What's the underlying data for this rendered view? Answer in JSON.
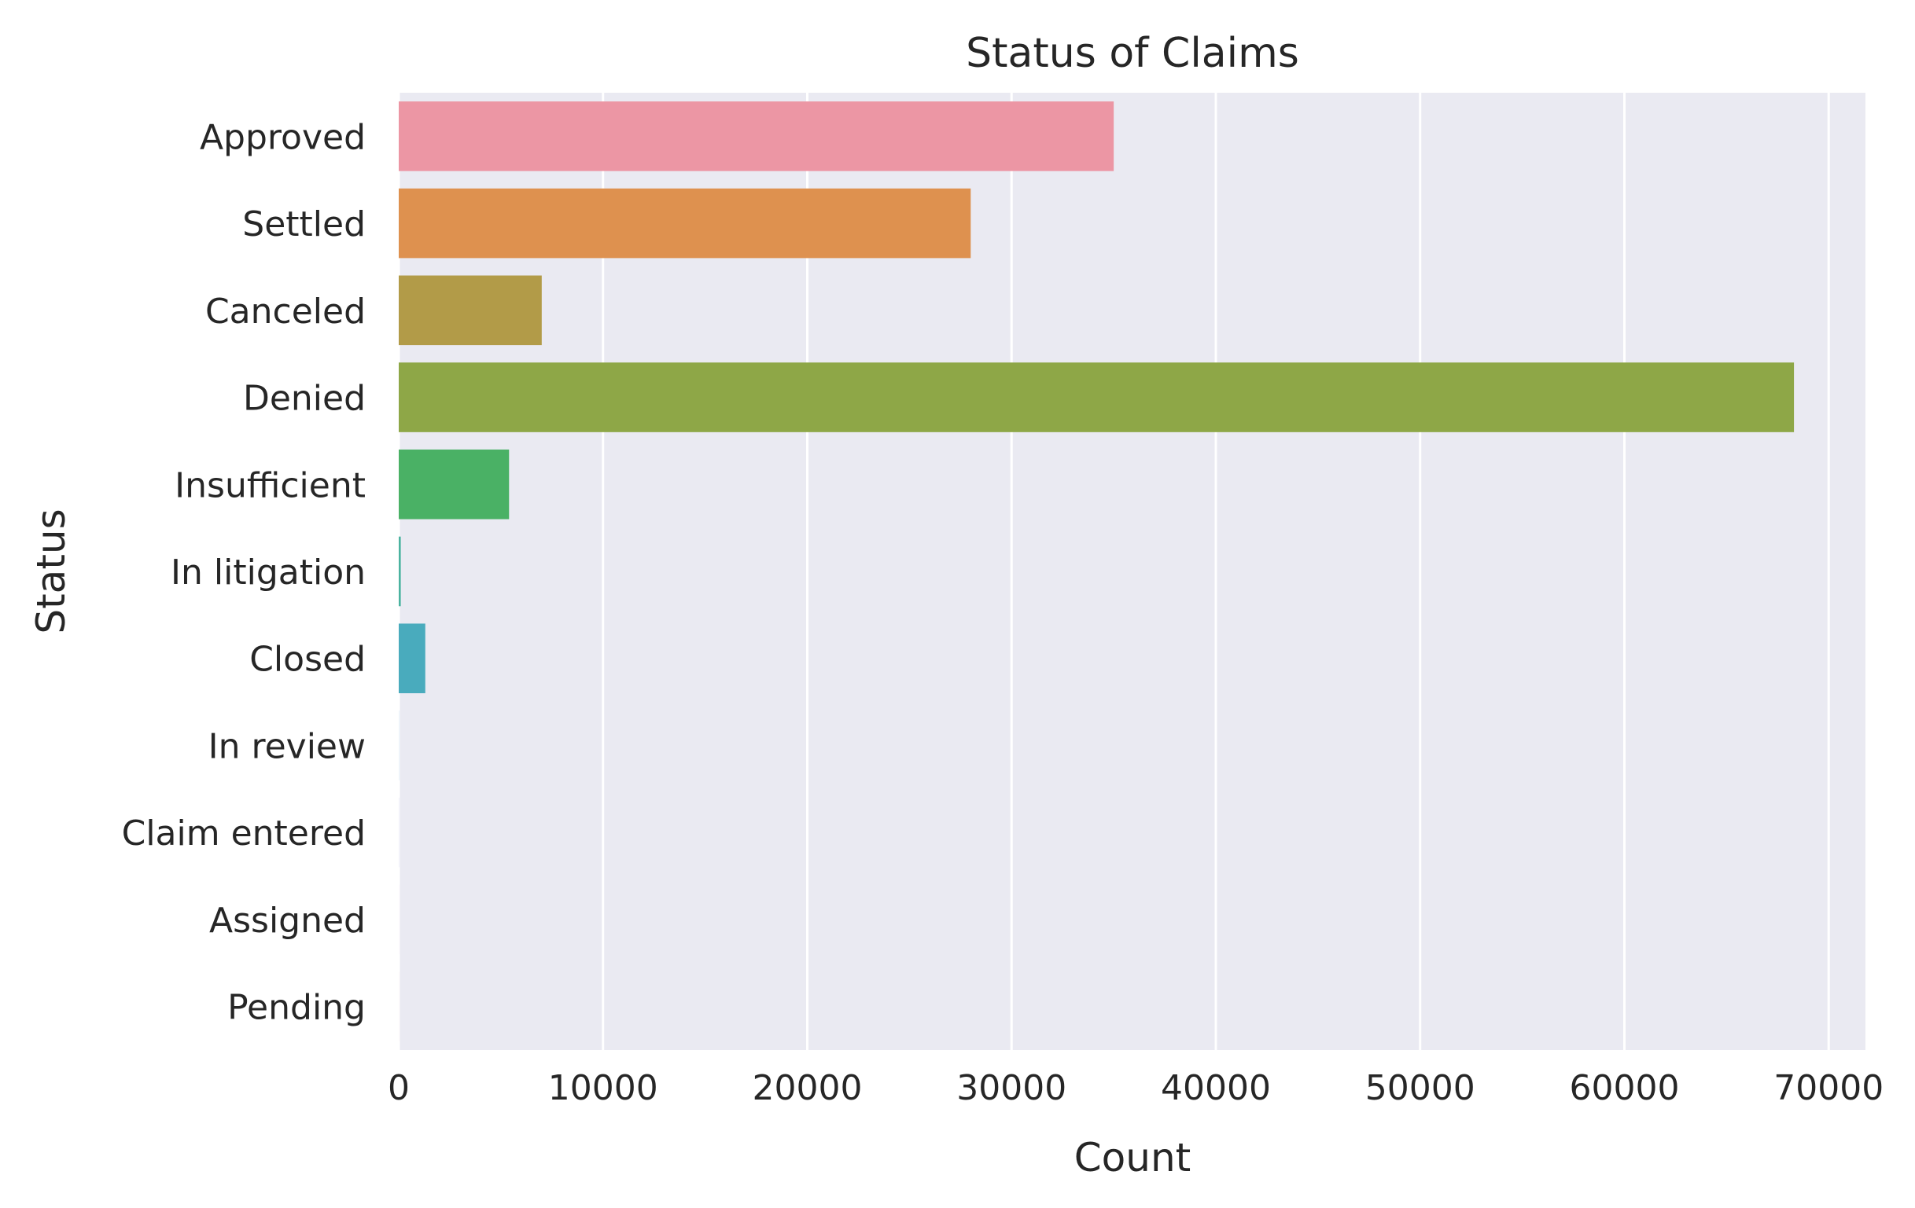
{
  "chart_data": {
    "type": "bar",
    "orientation": "horizontal",
    "title": "Status of Claims",
    "xlabel": "Count",
    "ylabel": "Status",
    "xlim": [
      0,
      71800
    ],
    "xticks": [
      0,
      10000,
      20000,
      30000,
      40000,
      50000,
      60000,
      70000
    ],
    "grid": true,
    "legend": "none",
    "categories": [
      "Approved",
      "Settled",
      "Canceled",
      "Denied",
      "Insufficient",
      "In litigation",
      "Closed",
      "In review",
      "Claim entered",
      "Assigned",
      "Pending"
    ],
    "values": [
      35000,
      28000,
      7000,
      68300,
      5400,
      100,
      1300,
      5,
      5,
      2,
      2
    ],
    "colors": [
      "#ec96a4",
      "#de914f",
      "#b29b48",
      "#8ea747",
      "#4ab165",
      "#4bb3a0",
      "#49abbd",
      "#5aa9df",
      "#a4a3ea",
      "#e48ce8",
      "#ee92c8"
    ]
  }
}
